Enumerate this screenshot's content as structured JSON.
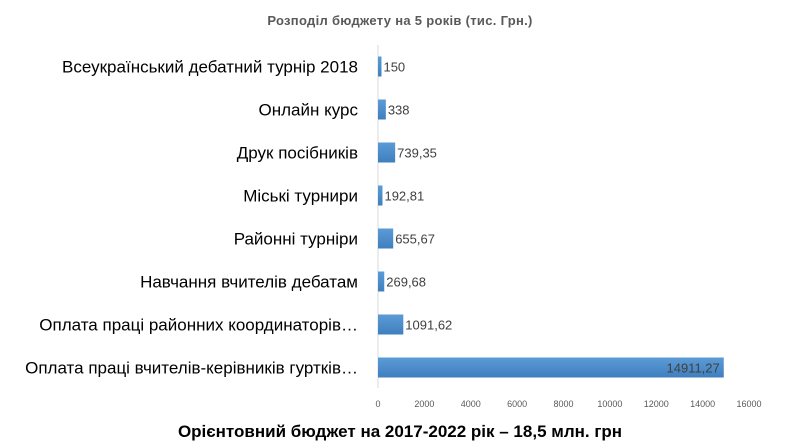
{
  "chart_data": {
    "type": "bar",
    "orientation": "horizontal",
    "title": "Розподіл  бюджету на 5 років  (тис. Грн.)",
    "categories": [
      "Всеукраїнський дебатний турнір 2018",
      "Онлайн курс",
      "Друк посібників",
      "Міські турнири",
      "Районні турніри",
      "Навчання вчителів  дебатам",
      "Оплата праці районних координаторів…",
      "Оплата праці вчителів-керівників гуртків…"
    ],
    "values": [
      150,
      338,
      739.35,
      192.81,
      655.67,
      269.68,
      1091.62,
      14911.27
    ],
    "value_labels": [
      "150",
      "338",
      "739,35",
      "192,81",
      "655,67",
      "269,68",
      "1091,62",
      "14911,27"
    ],
    "xlim": [
      0,
      16000
    ],
    "xticks": [
      0,
      2000,
      4000,
      6000,
      8000,
      10000,
      12000,
      14000,
      16000
    ],
    "xtick_labels": [
      "0",
      "2000",
      "4000",
      "6000",
      "8000",
      "10000",
      "12000",
      "14000",
      "16000"
    ],
    "grid": false,
    "colors": {
      "bar": "#5b9bd5",
      "bar_dark": "#3f7fbf",
      "axis": "#d9d9d9",
      "label": "#404040"
    }
  },
  "footer": "Орієнтовний бюджет на 2017-2022 рік – 18,5 млн. грн"
}
